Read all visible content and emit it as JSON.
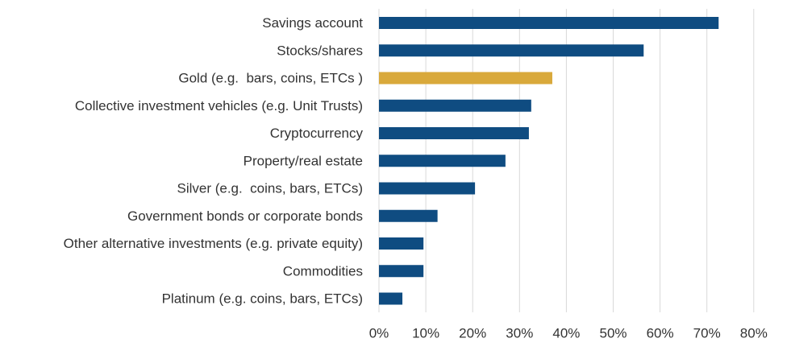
{
  "chart_data": {
    "type": "bar",
    "orientation": "horizontal",
    "categories": [
      "Savings account",
      "Stocks/shares",
      "Gold (e.g.  bars, coins, ETCs )",
      "Collective investment vehicles (e.g. Unit Trusts)",
      "Cryptocurrency",
      "Property/real estate",
      "Silver (e.g.  coins, bars, ETCs)",
      "Government bonds or corporate bonds",
      "Other alternative investments (e.g. private equity)",
      "Commodities",
      "Platinum (e.g. coins, bars, ETCs)"
    ],
    "values": [
      72.5,
      56.5,
      37,
      32.5,
      32,
      27,
      20.5,
      12.5,
      9.5,
      9.5,
      5
    ],
    "colors": [
      "#0f4c81",
      "#0f4c81",
      "#d9a93b",
      "#0f4c81",
      "#0f4c81",
      "#0f4c81",
      "#0f4c81",
      "#0f4c81",
      "#0f4c81",
      "#0f4c81",
      "#0f4c81"
    ],
    "xlim": [
      0,
      80
    ],
    "x_ticks": [
      0,
      10,
      20,
      30,
      40,
      50,
      60,
      70,
      80
    ],
    "x_tick_labels": [
      "0%",
      "10%",
      "20%",
      "30%",
      "40%",
      "50%",
      "60%",
      "70%",
      "80%"
    ],
    "title": "",
    "xlabel": "",
    "ylabel": "",
    "grid": "vertical",
    "legend": "none"
  }
}
